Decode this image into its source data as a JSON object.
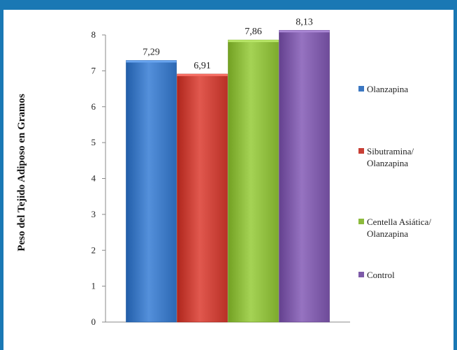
{
  "chart_data": {
    "type": "bar",
    "ylabel": "Peso del Tejido Adiposo en Gramos",
    "xlabel": "",
    "ylim": [
      0,
      8
    ],
    "yticks": [
      0,
      1,
      2,
      3,
      4,
      5,
      6,
      7,
      8
    ],
    "grid": false,
    "legend_position": "right",
    "series": [
      {
        "name": "Olanzapina",
        "value": 7.29,
        "label": "7,29",
        "color": "#3b77c2"
      },
      {
        "name": "Sibutramina/\nOlanzapina",
        "value": 6.91,
        "label": "6,91",
        "color": "#c83f35"
      },
      {
        "name": "Centella Asiática/\nOlanzapina",
        "value": 7.86,
        "label": "7,86",
        "color": "#8cba3c"
      },
      {
        "name": "Control",
        "value": 8.13,
        "label": "8,13",
        "color": "#7d5aa8"
      }
    ]
  }
}
